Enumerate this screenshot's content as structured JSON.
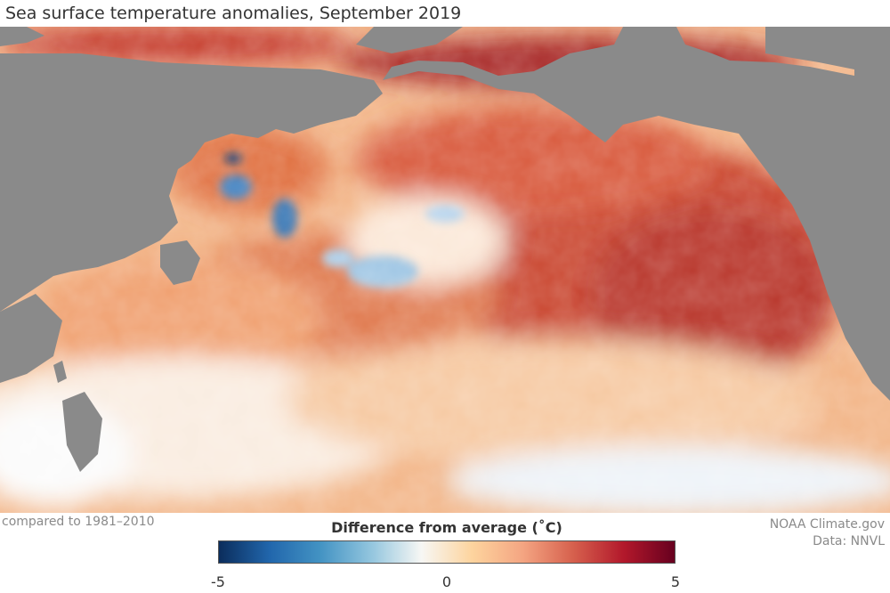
{
  "title": "Sea surface temperature anomalies, September 2019",
  "map": {
    "region": "North Pacific Ocean",
    "land_color": "#8a8a8a",
    "description_colors": {
      "cold_extreme": "#0b2d5c",
      "cold": "#2f7fc1",
      "neutral": "#f7f7f4",
      "warm": "#f0a96a",
      "hot": "#cc3b2a",
      "hot_extreme": "#6b0019"
    }
  },
  "footer": {
    "baseline": "compared to 1981–2010",
    "credit": "NOAA Climate.gov",
    "data_source": "Data: NNVL"
  },
  "legend": {
    "title": "Difference from average (˚C)",
    "min_label": "-5",
    "mid_label": "0",
    "max_label": "5",
    "min_value": -5,
    "max_value": 5,
    "stops": [
      "#0b2d5c",
      "#2166ac",
      "#4393c3",
      "#92c5de",
      "#f7f7f4",
      "#fdd49e",
      "#f4a582",
      "#d6604d",
      "#b2182b",
      "#67001f"
    ]
  }
}
